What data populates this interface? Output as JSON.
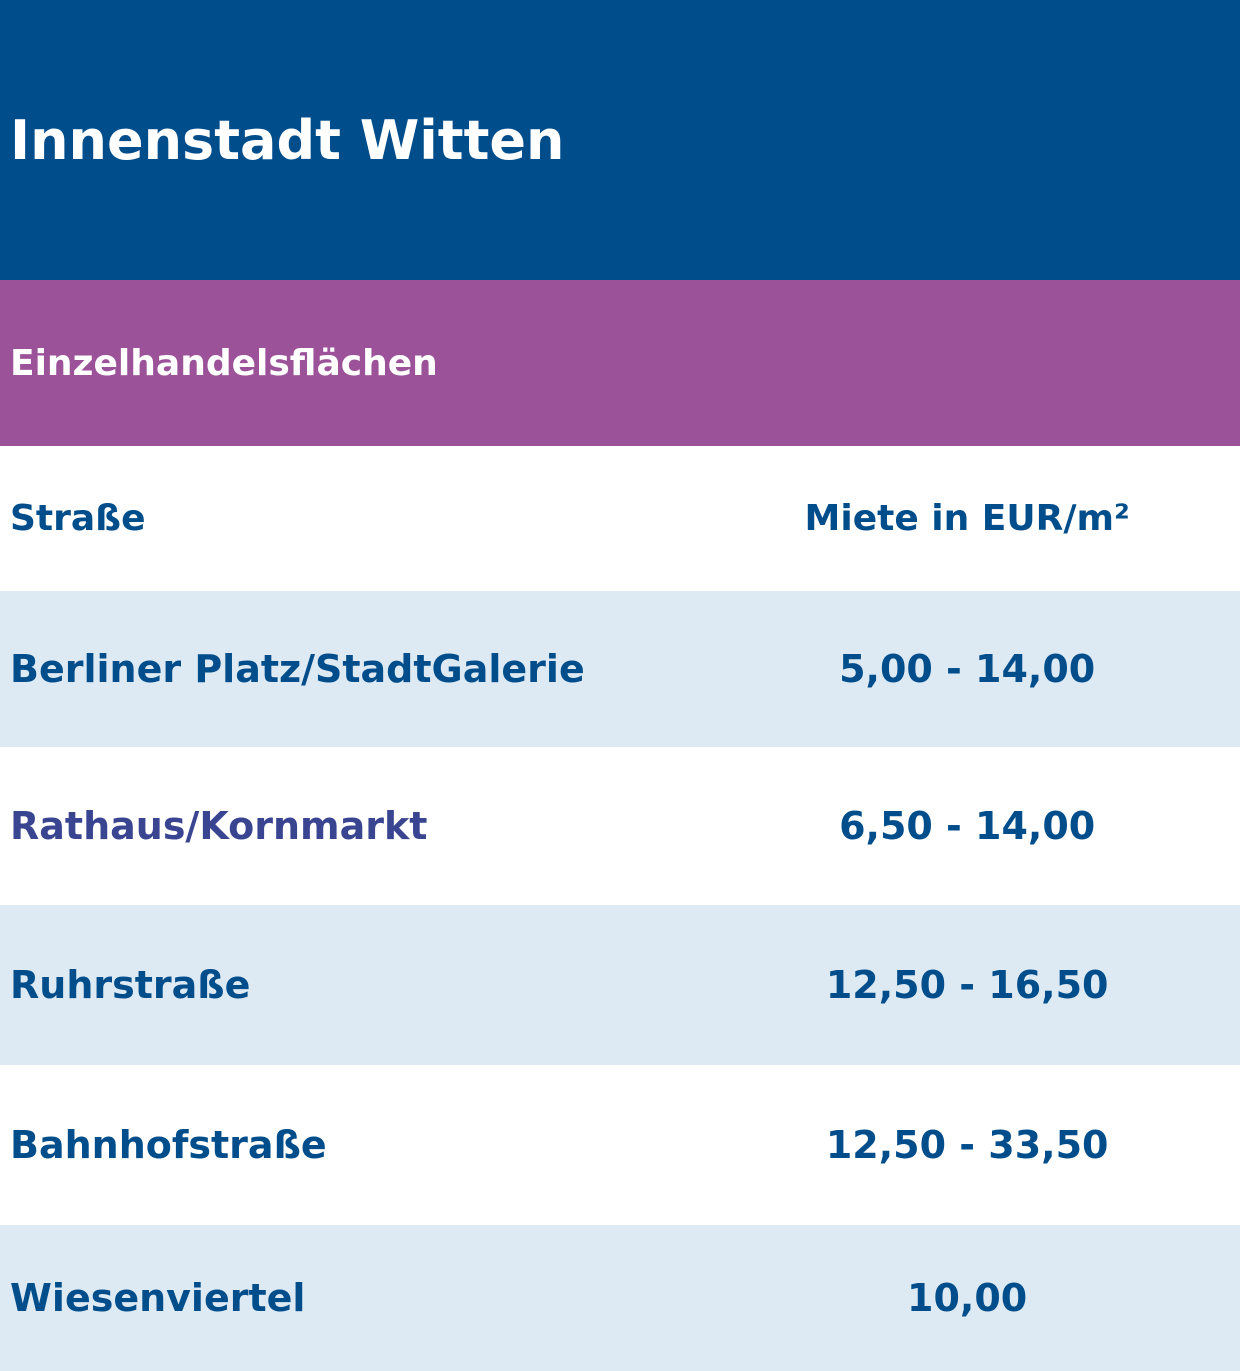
{
  "header": {
    "title": "Innenstadt Witten"
  },
  "section": {
    "title": "Einzelhandelsflächen"
  },
  "table": {
    "columns": [
      "Straße",
      "Miete in EUR/m²"
    ],
    "rows": [
      [
        "Berliner Platz/StadtGalerie",
        "5,00 - 14,00"
      ],
      [
        "Rathaus/Kornmarkt",
        "6,50 - 14,00"
      ],
      [
        "Ruhrstraße",
        "12,50 - 16,50"
      ],
      [
        "Bahnhofstraße",
        "12,50 - 33,50"
      ],
      [
        "Wiesenviertel",
        "10,00"
      ]
    ]
  }
}
